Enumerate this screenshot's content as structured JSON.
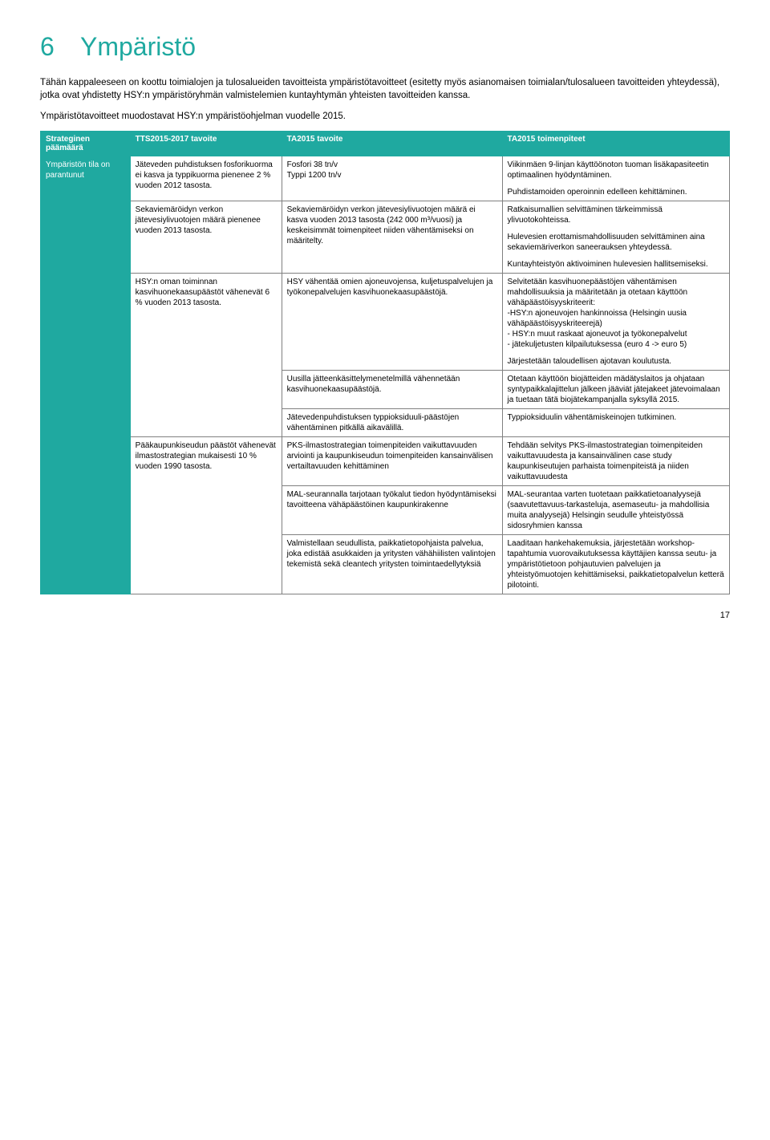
{
  "chapter": {
    "num": "6",
    "title": "Ympäristö"
  },
  "intro": [
    "Tähän kappaleeseen on koottu toimialojen ja tulosalueiden tavoitteista ympäristötavoitteet (esitetty myös asianomaisen toimialan/tulosalueen tavoitteiden yhteydessä), jotka ovat yhdistetty HSY:n ympäristöryhmän valmistelemien kuntayhtymän yhteisten tavoitteiden kanssa.",
    "Ympäristötavoitteet muodostavat HSY:n ympäristöohjelman vuodelle 2015."
  ],
  "headers": {
    "c1": "Strateginen päämäärä",
    "c2": "TTS2015-2017 tavoite",
    "c3": "TA2015 tavoite",
    "c4": "TA2015 toimenpiteet"
  },
  "leftcell": "Ympäristön tila on parantunut",
  "rows": [
    {
      "c2": "Jäteveden puhdistuksen fosforikuorma ei kasva ja typpikuorma pienenee 2 % vuoden 2012 tasosta.",
      "c3": "Fosfori 38 tn/v\nTyppi 1200 tn/v",
      "c4": "Viikinmäen 9-linjan käyttöönoton tuoman lisäkapasiteetin optimaalinen hyödyntäminen.\n\nPuhdistamoiden operoinnin edelleen kehittäminen."
    },
    {
      "c2": "Sekaviemäröidyn verkon jätevesiylivuotojen määrä pienenee vuoden 2013 tasosta.",
      "c3": "Sekaviemäröidyn verkon jätevesiylivuotojen määrä ei kasva vuoden 2013 tasosta (242 000 m³/vuosi) ja keskeisimmät toimenpiteet niiden vähentämiseksi on määritelty.",
      "c4": "Ratkaisumallien selvittäminen tärkeimmissä ylivuotokohteissa.\n\nHulevesien erottamismahdollisuuden selvittäminen aina sekaviemäriverkon saneerauksen yhteydessä.\n\nKuntayhteistyön aktivoiminen hulevesien hallitsemiseksi."
    },
    {
      "c2": "HSY:n oman toiminnan kasvihuonekaasupäästöt vähenevät 6 % vuoden 2013 tasosta.",
      "c3": "HSY vähentää omien ajoneuvojensa, kuljetuspalvelujen ja työkonepalvelujen kasvihuonekaasupäästöjä.",
      "c4": "Selvitetään kasvihuonepäästöjen vähentämisen mahdollisuuksia ja määritetään ja otetaan käyttöön vähäpäästöisyyskriteerit:\n-HSY:n ajoneuvojen hankinnoissa (Helsingin uusia vähäpäästöisyyskriteerejä)\n- HSY:n muut raskaat ajoneuvot ja työkonepalvelut\n- jätekuljetusten kilpailutuksessa (euro 4 -> euro 5)\n\nJärjestetään taloudellisen ajotavan koulutusta."
    },
    {
      "c2": "",
      "c3": "Uusilla jätteenkäsittelymenetelmillä vähennetään kasvihuonekaasupäästöjä.",
      "c4": "Otetaan käyttöön biojätteiden mädätyslaitos ja ohjataan syntypaikkalajittelun jälkeen jääviät jätejakeet jätevoimalaan ja tuetaan tätä biojätekampanjalla syksyllä 2015."
    },
    {
      "c2": "",
      "c3": "Jätevedenpuhdistuksen typpioksiduuli-päästöjen vähentäminen pitkällä aikavälillä.",
      "c4": "Typpioksiduulin vähentämiskeinojen tutkiminen."
    },
    {
      "c2": "Pääkaupunkiseudun päästöt vähenevät ilmastostrategian mukaisesti 10 % vuoden 1990 tasosta.",
      "c3": "PKS-ilmastostrategian toimenpiteiden vaikuttavuuden arviointi ja kaupunkiseudun toimenpiteiden kansainvälisen vertailtavuuden kehittäminen",
      "c4": "Tehdään selvitys PKS-ilmastostrategian toimenpiteiden vaikuttavuudesta ja kansainvälinen case study kaupunkiseutujen parhaista toimenpiteistä ja niiden vaikuttavuudesta"
    },
    {
      "c2": "",
      "c3": "MAL-seurannalla tarjotaan työkalut tiedon hyödyntämiseksi tavoitteena vähäpäästöinen kaupunkirakenne",
      "c4": "MAL-seurantaa varten tuotetaan paikkatietoanalyysejä (saavutettavuus-tarkasteluja, asemaseutu- ja mahdollisia muita analyysejä) Helsingin seudulle yhteistyössä sidosryhmien kanssa"
    },
    {
      "c2": "",
      "c3": "Valmistellaan seudullista, paikkatietopohjaista palvelua, joka edistää asukkaiden ja yritysten vähähiilisten valintojen tekemistä sekä cleantech yritysten toimintaedellytyksiä",
      "c4": "Laaditaan hankehakemuksia, järjestetään workshop-tapahtumia vuorovaikutuksessa käyttäjien kanssa seutu- ja ympäristötietoon pohjautuvien palvelujen ja yhteistyömuotojen kehittämiseksi, paikkatietopalvelun ketterä pilotointi."
    }
  ],
  "span2": {
    "r1": 3,
    "r2": 2,
    "r3": 3
  },
  "pagenum": "17",
  "colwidths": {
    "c1": "13%",
    "c2": "22%",
    "c3": "32%",
    "c4": "33%"
  }
}
